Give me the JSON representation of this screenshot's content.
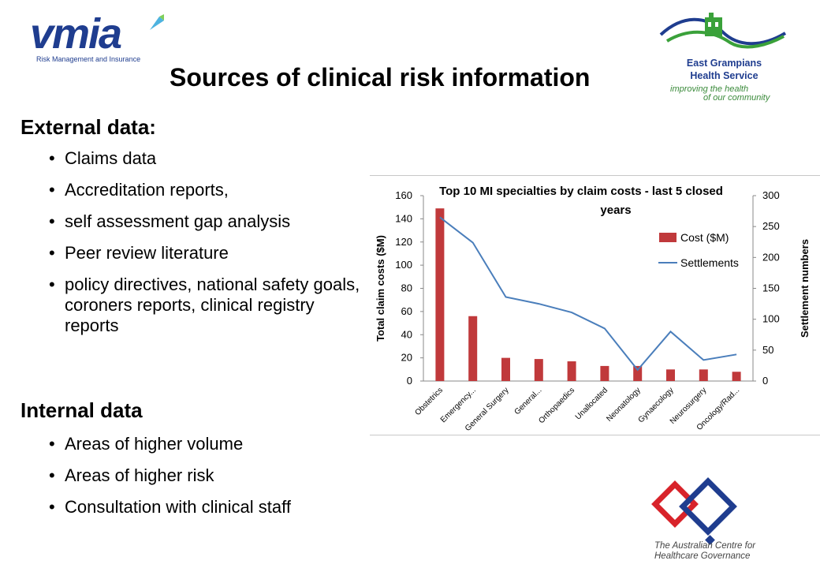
{
  "logos": {
    "vmia": {
      "word": "vmia",
      "tagline": "Risk Management and Insurance"
    },
    "egh": {
      "line1": "East Grampians",
      "line2": "Health Service",
      "slogan1": "improving the health",
      "slogan2": "of our community"
    },
    "acgh": {
      "line1": "The Australian Centre for",
      "line2": "Healthcare Governance"
    }
  },
  "title": "Sources of clinical risk information",
  "external": {
    "heading": "External data:",
    "items": [
      "Claims data",
      "Accreditation reports,",
      "self assessment gap analysis",
      "Peer review literature",
      "policy directives, national safety goals, coroners reports, clinical registry reports"
    ]
  },
  "internal": {
    "heading": "Internal data",
    "items": [
      "Areas of higher volume",
      "Areas of higher risk",
      "Consultation with clinical staff"
    ]
  },
  "colors": {
    "bar": "#c0393b",
    "line": "#4a7ebb",
    "navy": "#1f3d8f",
    "green": "#3a8a3a"
  },
  "chart_data": {
    "type": "bar",
    "title_line1": "Top 10 MI specialties by claim costs - last 5 closed",
    "title_line2": "years",
    "categories": [
      "Obstetrics",
      "Emergency...",
      "General Surgery",
      "General...",
      "Orthopaedics",
      "Unallocated",
      "Neonatology",
      "Gynaecology",
      "Neurosurgery",
      "Oncology/Rad..."
    ],
    "ylabel": "Total claim costs ($M)",
    "y2label": "Settlement numbers",
    "ylim": [
      0,
      160
    ],
    "y2lim": [
      0,
      300
    ],
    "yticks": [
      0,
      20,
      40,
      60,
      80,
      100,
      120,
      140,
      160
    ],
    "y2ticks": [
      0,
      50,
      100,
      150,
      200,
      250,
      300
    ],
    "series": [
      {
        "name": "Cost ($M)",
        "kind": "bar",
        "axis": "left",
        "values": [
          149,
          56,
          20,
          19,
          17,
          13,
          13,
          10,
          10,
          8
        ]
      },
      {
        "name": "Settlements",
        "kind": "line",
        "axis": "right",
        "values": [
          265,
          224,
          136,
          125,
          111,
          85,
          18,
          80,
          34,
          43
        ]
      }
    ],
    "legend": "right",
    "grid": false
  }
}
